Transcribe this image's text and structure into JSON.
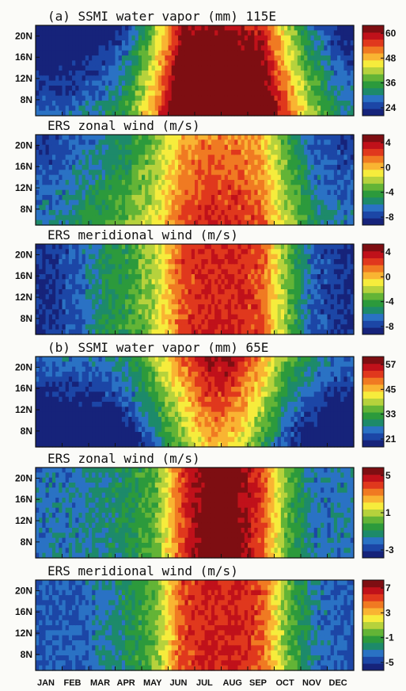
{
  "chart_data": {
    "type": "heatmap",
    "x_categories": [
      "JAN",
      "FEB",
      "MAR",
      "APR",
      "MAY",
      "JUN",
      "JUL",
      "AUG",
      "SEP",
      "OCT",
      "NOV",
      "DEC"
    ],
    "y_ticks": [
      "20N",
      "16N",
      "12N",
      "8N"
    ],
    "y_range": [
      5,
      22
    ],
    "panels": [
      {
        "title": "(a) SSMI water vapor (mm) 115E",
        "colorbar_ticks": [
          "60",
          "48",
          "36",
          "24"
        ],
        "range": [
          24,
          60
        ],
        "month_values": [
          25,
          26,
          28,
          33,
          45,
          62,
          63,
          62,
          60,
          47,
          36,
          29
        ],
        "lat_gradient": -5
      },
      {
        "title": "ERS zonal wind (m/s)",
        "colorbar_ticks": [
          "4",
          "0",
          "-4",
          "-8"
        ],
        "range": [
          -8,
          6
        ],
        "month_values": [
          -6,
          -5,
          -4,
          -3,
          -1,
          2,
          3,
          3,
          2,
          -2,
          -5,
          -6
        ],
        "lat_gradient": -1
      },
      {
        "title": "ERS meridional wind (m/s)",
        "colorbar_ticks": [
          "4",
          "0",
          "-4",
          "-8"
        ],
        "range": [
          -8,
          6
        ],
        "month_values": [
          -7,
          -6,
          -4,
          -3,
          -1,
          3,
          4,
          4,
          3,
          -2,
          -6,
          -7
        ],
        "lat_gradient": 0
      },
      {
        "title": "(b) SSMI water vapor (mm) 65E",
        "colorbar_ticks": [
          "57",
          "45",
          "33",
          "21"
        ],
        "range": [
          21,
          57
        ],
        "month_values": [
          22,
          22,
          23,
          26,
          33,
          42,
          50,
          48,
          40,
          30,
          25,
          22
        ],
        "lat_gradient": 6
      },
      {
        "title": "ERS zonal wind (m/s)",
        "colorbar_ticks": [
          "5",
          "1",
          "-3"
        ],
        "range": [
          -3,
          7
        ],
        "month_values": [
          -1,
          -1,
          -0.5,
          0,
          1,
          5,
          7,
          7,
          5,
          1,
          -1,
          -1
        ],
        "lat_gradient": 0
      },
      {
        "title": "ERS meridional wind (m/s)",
        "colorbar_ticks": [
          "7",
          "3",
          "-1",
          "-5"
        ],
        "range": [
          -5,
          9
        ],
        "month_values": [
          -3,
          -3,
          -2,
          -1,
          1,
          6,
          7,
          7,
          6,
          1,
          -2,
          -3
        ],
        "lat_gradient": 0
      }
    ]
  }
}
